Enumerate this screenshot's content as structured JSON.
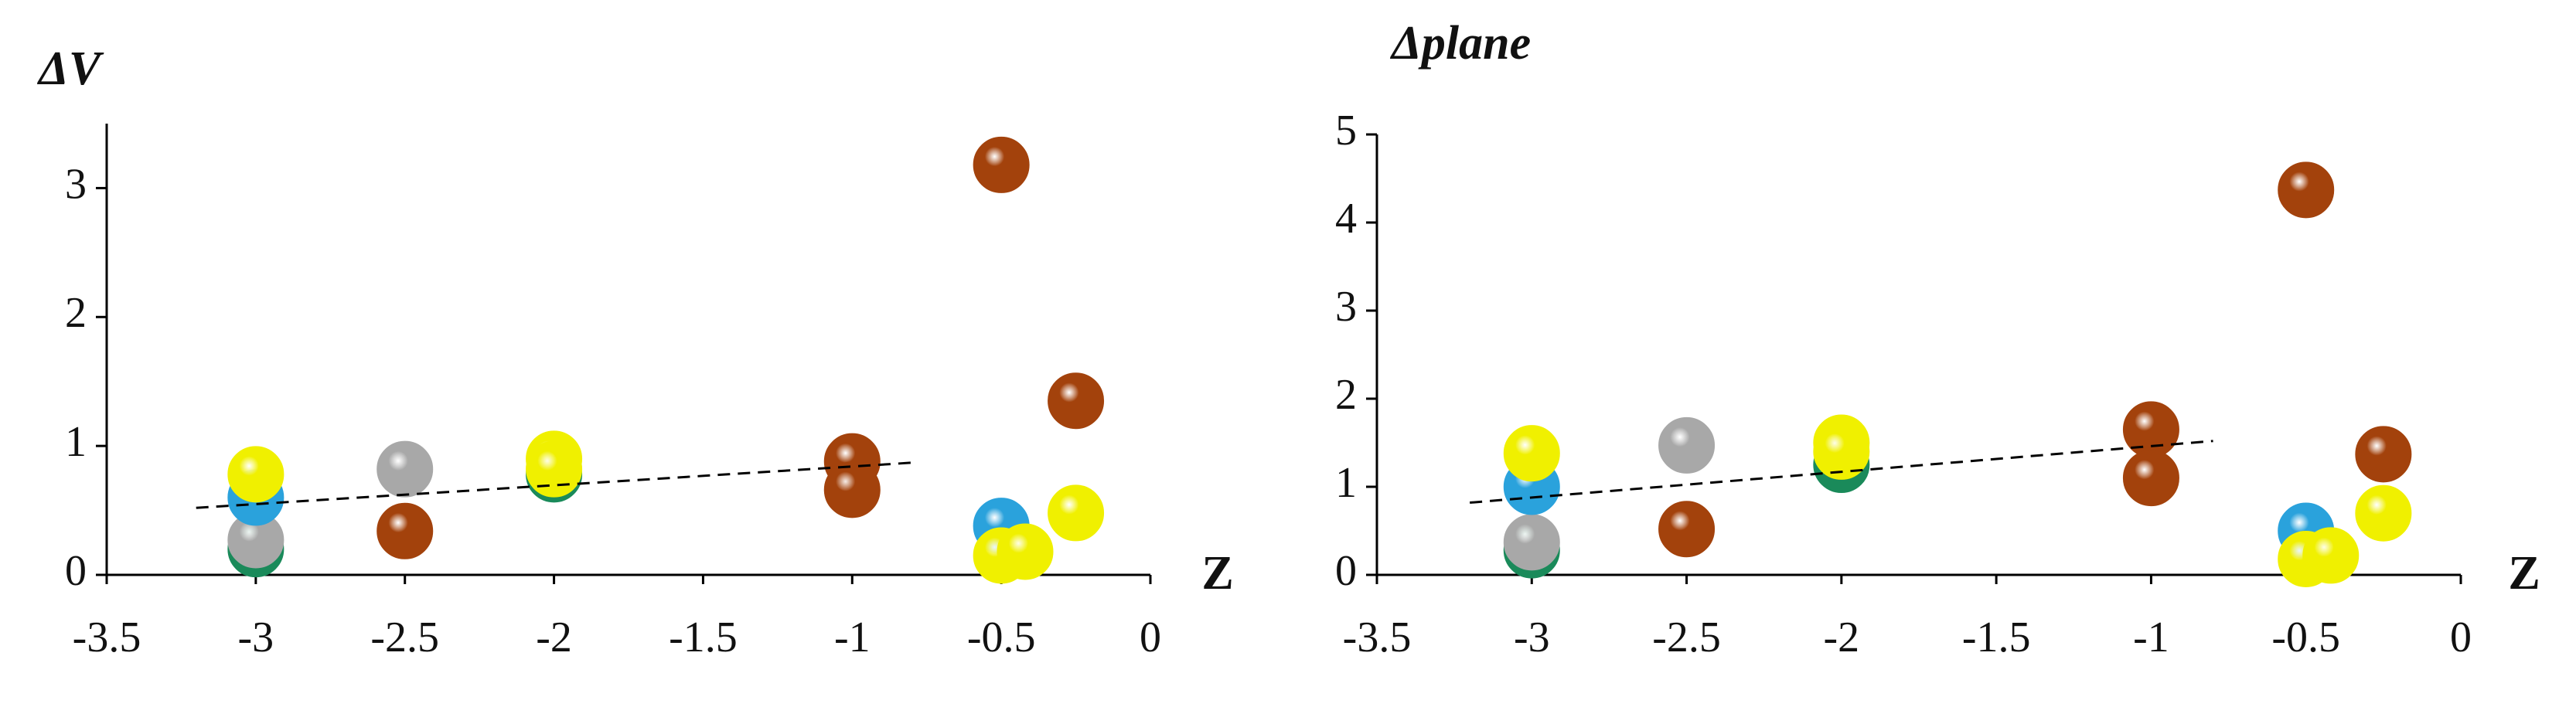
{
  "chart_data": [
    {
      "type": "scatter",
      "y_label": "ΔV",
      "x_label": "Z",
      "xlim": [
        -3.5,
        0
      ],
      "xticks": [
        -3.5,
        -3,
        -2.5,
        -2,
        -1.5,
        -1,
        -0.5,
        0
      ],
      "ylim": [
        0,
        3.5
      ],
      "yticks": [
        0,
        1,
        2,
        3
      ],
      "series": [
        {
          "color": "#1a8a5a",
          "x": [
            -3,
            -2
          ],
          "y": [
            0.2,
            0.78
          ]
        },
        {
          "color": "#a8a8a8",
          "x": [
            -3,
            -2.5
          ],
          "y": [
            0.27,
            0.82
          ]
        },
        {
          "color": "#2aa2dc",
          "x": [
            -3,
            -0.5
          ],
          "y": [
            0.6,
            0.38
          ]
        },
        {
          "color": "#f0f000",
          "x": [
            -3,
            -2,
            -2,
            -0.5,
            -0.42,
            -0.25
          ],
          "y": [
            0.78,
            0.9,
            0.82,
            0.15,
            0.18,
            0.48
          ]
        },
        {
          "color": "#a3420c",
          "x": [
            -2.5,
            -1,
            -1,
            -0.5,
            -0.25
          ],
          "y": [
            0.34,
            0.88,
            0.66,
            3.18,
            1.35
          ]
        }
      ],
      "trendline": {
        "x": [
          -3.2,
          -0.8
        ],
        "y": [
          0.52,
          0.87
        ]
      }
    },
    {
      "type": "scatter",
      "y_label": "Δplane",
      "x_label": "Z",
      "xlim": [
        -3.5,
        0
      ],
      "xticks": [
        -3.5,
        -3,
        -2.5,
        -2,
        -1.5,
        -1,
        -0.5,
        0
      ],
      "ylim": [
        0,
        5
      ],
      "yticks": [
        0,
        1,
        2,
        3,
        4,
        5
      ],
      "series": [
        {
          "color": "#1a8a5a",
          "x": [
            -3,
            -2
          ],
          "y": [
            0.28,
            1.25
          ]
        },
        {
          "color": "#a8a8a8",
          "x": [
            -3,
            -2.5
          ],
          "y": [
            0.37,
            1.47
          ]
        },
        {
          "color": "#2aa2dc",
          "x": [
            -3,
            -0.5
          ],
          "y": [
            1.0,
            0.5
          ]
        },
        {
          "color": "#f0f000",
          "x": [
            -3,
            -2,
            -2,
            -0.5,
            -0.42,
            -0.25
          ],
          "y": [
            1.38,
            1.5,
            1.4,
            0.18,
            0.22,
            0.7
          ]
        },
        {
          "color": "#a3420c",
          "x": [
            -2.5,
            -1,
            -1,
            -0.5,
            -0.25
          ],
          "y": [
            0.52,
            1.65,
            1.1,
            4.37,
            1.37
          ]
        }
      ],
      "trendline": {
        "x": [
          -3.2,
          -0.8
        ],
        "y": [
          0.82,
          1.52
        ]
      }
    }
  ]
}
